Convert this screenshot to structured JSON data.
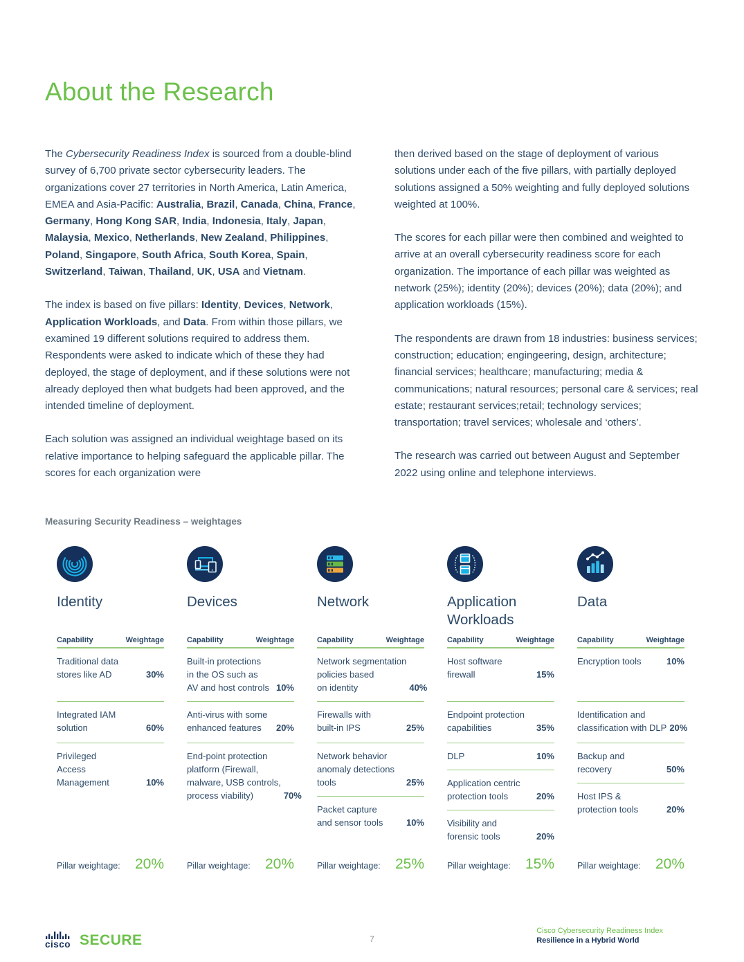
{
  "page_title": "About the Research",
  "colors": {
    "accent_green": "#6cc04a",
    "body_navy": "#2d4a68",
    "divider_green": "#97ca7c",
    "icon_navy": "#15305a",
    "icon_cyan": "#17b1e8",
    "icon_green": "#67b845",
    "icon_orange": "#f0a63c",
    "label_gray": "#6f7c85"
  },
  "intro": {
    "left_p1": [
      {
        "t": "The "
      },
      {
        "t": "Cybersecurity Readiness Index",
        "i": true
      },
      {
        "t": " is sourced from a double-blind survey of 6,700 private sector cybersecurity leaders. The organizations cover 27 territories in North America, Latin America, EMEA and Asia-Pacific: "
      },
      {
        "t": "Australia",
        "b": true
      },
      {
        "t": ", "
      },
      {
        "t": "Brazil",
        "b": true
      },
      {
        "t": ", "
      },
      {
        "t": "Canada",
        "b": true
      },
      {
        "t": ", "
      },
      {
        "t": "China",
        "b": true
      },
      {
        "t": ", "
      },
      {
        "t": "France",
        "b": true
      },
      {
        "t": ", "
      },
      {
        "t": "Germany",
        "b": true
      },
      {
        "t": ", "
      },
      {
        "t": "Hong Kong SAR",
        "b": true
      },
      {
        "t": ", "
      },
      {
        "t": "India",
        "b": true
      },
      {
        "t": ", "
      },
      {
        "t": "Indonesia",
        "b": true
      },
      {
        "t": ", "
      },
      {
        "t": "Italy",
        "b": true
      },
      {
        "t": ", "
      },
      {
        "t": "Japan",
        "b": true
      },
      {
        "t": ", "
      },
      {
        "t": "Malaysia",
        "b": true
      },
      {
        "t": ", "
      },
      {
        "t": "Mexico",
        "b": true
      },
      {
        "t": ", "
      },
      {
        "t": "Netherlands",
        "b": true
      },
      {
        "t": ", "
      },
      {
        "t": "New Zealand",
        "b": true
      },
      {
        "t": ", "
      },
      {
        "t": "Philippines",
        "b": true
      },
      {
        "t": ", "
      },
      {
        "t": "Poland",
        "b": true
      },
      {
        "t": ", "
      },
      {
        "t": "Singapore",
        "b": true
      },
      {
        "t": ", "
      },
      {
        "t": "South Africa",
        "b": true
      },
      {
        "t": ", "
      },
      {
        "t": "South Korea",
        "b": true
      },
      {
        "t": ", "
      },
      {
        "t": "Spain",
        "b": true
      },
      {
        "t": ", "
      },
      {
        "t": "Switzerland",
        "b": true
      },
      {
        "t": ", "
      },
      {
        "t": "Taiwan",
        "b": true
      },
      {
        "t": ", "
      },
      {
        "t": "Thailand",
        "b": true
      },
      {
        "t": ", "
      },
      {
        "t": "UK",
        "b": true
      },
      {
        "t": ", "
      },
      {
        "t": "USA",
        "b": true
      },
      {
        "t": " and "
      },
      {
        "t": "Vietnam",
        "b": true
      },
      {
        "t": "."
      }
    ],
    "left_p2": [
      {
        "t": "The index is based on five pillars: "
      },
      {
        "t": "Identity",
        "b": true
      },
      {
        "t": ", "
      },
      {
        "t": "Devices",
        "b": true
      },
      {
        "t": ", "
      },
      {
        "t": "Network",
        "b": true
      },
      {
        "t": ", "
      },
      {
        "t": "Application Workloads",
        "b": true
      },
      {
        "t": ", and "
      },
      {
        "t": "Data",
        "b": true
      },
      {
        "t": ". From within those pillars, we examined 19 different solutions required to address them. Respondents were asked to indicate which of these they had deployed, the stage of deployment, and if these solutions were not already deployed then what budgets had been approved, and the intended timeline of deployment."
      }
    ],
    "left_p3": "Each solution was assigned an individual weightage based on its relative importance to helping safeguard the applicable pillar. The scores for each organization were",
    "right_p1": "then derived based on the stage of deployment of various solutions under each of the five pillars, with partially deployed solutions assigned a 50% weighting and fully deployed solutions weighted at 100%.",
    "right_p2": "The scores for each pillar were then combined and weighted to arrive at an overall cybersecurity readiness score for each organization. The importance of each pillar was weighted as network (25%); identity (20%); devices (20%); data (20%); and application workloads (15%).",
    "right_p3": "The respondents are drawn from 18 industries: business services; construction; education; engingeering, design, architecture; financial services; healthcare; manufacturing; media & communications; natural resources; personal care & services; real estate; restaurant services;retail; technology services; transportation; travel services; wholesale and ‘others’.",
    "right_p4": "The research was carried out between August and September 2022 using online and telephone interviews."
  },
  "weightages_section": {
    "heading": "Measuring Security Readiness – weightages",
    "table_header": {
      "capability": "Capability",
      "weightage": "Weightage"
    },
    "pillar_weightage_label": "Pillar weightage:",
    "pillars": [
      {
        "name": "Identity",
        "icon": "fingerprint-icon",
        "pillar_weightage": "20%",
        "rows": [
          {
            "lines": [
              "Traditional data",
              "stores like AD"
            ],
            "weightage": "30%"
          },
          {
            "lines": [
              "Integrated IAM",
              "solution"
            ],
            "weightage": "60%"
          },
          {
            "lines": [
              "Privileged",
              "Access",
              "Management"
            ],
            "weightage": "10%"
          }
        ]
      },
      {
        "name": "Devices",
        "icon": "devices-icon",
        "pillar_weightage": "20%",
        "rows": [
          {
            "lines": [
              "Built-in protections",
              "in the OS such as",
              "AV and host controls"
            ],
            "weightage": "10%"
          },
          {
            "lines": [
              "Anti-virus with some",
              "enhanced features"
            ],
            "weightage": "20%"
          },
          {
            "lines": [
              "End-point protection",
              "platform (Firewall,",
              "malware, USB controls,",
              "process viability)"
            ],
            "weightage": "70%"
          }
        ]
      },
      {
        "name": "Network",
        "icon": "network-icon",
        "pillar_weightage": "25%",
        "rows": [
          {
            "lines": [
              "Network segmentation",
              "policies based",
              "on identity"
            ],
            "weightage": "40%"
          },
          {
            "lines": [
              "Firewalls with",
              "built-in IPS"
            ],
            "weightage": "25%"
          },
          {
            "lines": [
              "Network behavior",
              "anomaly detections",
              "tools"
            ],
            "weightage": "25%"
          },
          {
            "lines": [
              "Packet capture",
              "and sensor tools"
            ],
            "weightage": "10%"
          }
        ]
      },
      {
        "name": "Application Workloads",
        "icon": "application-workloads-icon",
        "pillar_weightage": "15%",
        "rows": [
          {
            "lines": [
              "Host software",
              "firewall"
            ],
            "weightage": "15%"
          },
          {
            "lines": [
              "Endpoint protection",
              "capabilities"
            ],
            "weightage": "35%"
          },
          {
            "lines": [
              "DLP"
            ],
            "weightage": "10%"
          },
          {
            "lines": [
              "Application centric",
              "protection tools"
            ],
            "weightage": "20%"
          },
          {
            "lines": [
              "Visibility and",
              "forensic tools"
            ],
            "weightage": "20%"
          }
        ]
      },
      {
        "name": "Data",
        "icon": "data-icon",
        "pillar_weightage": "20%",
        "rows": [
          {
            "lines": [
              "Encryption tools"
            ],
            "weightage": "10%"
          },
          {
            "lines": [
              "Identification and",
              "classification with DLP"
            ],
            "weightage": "20%"
          },
          {
            "lines": [
              "Backup and",
              "recovery"
            ],
            "weightage": "50%"
          },
          {
            "lines": [
              "Host IPS &",
              "protection tools"
            ],
            "weightage": "20%"
          }
        ]
      }
    ]
  },
  "footer": {
    "logo_text": "cisco",
    "product": "SECURE",
    "page_number": "7",
    "report_title": "Cisco Cybersecurity Readiness Index",
    "report_subtitle": "Resilience in a Hybrid World"
  }
}
